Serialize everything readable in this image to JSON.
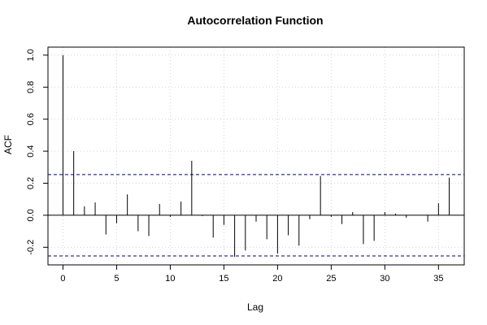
{
  "chart_data": {
    "type": "bar",
    "title": "Autocorrelation Function",
    "xlabel": "Lag",
    "ylabel": "ACF",
    "xlim": [
      -1.4,
      37.4
    ],
    "ylim": [
      -0.31,
      1.05
    ],
    "x_ticks": [
      0,
      5,
      10,
      15,
      20,
      25,
      30,
      35
    ],
    "y_ticks": [
      -0.2,
      0.0,
      0.2,
      0.4,
      0.6,
      0.8,
      1.0
    ],
    "grid": true,
    "confidence_band": 0.254,
    "colors": {
      "bars": "#000000",
      "band": "#00008b",
      "grid": "#d3d3d3",
      "zero_line": "#000000"
    },
    "lags": [
      0,
      1,
      2,
      3,
      4,
      5,
      6,
      7,
      8,
      9,
      10,
      11,
      12,
      13,
      14,
      15,
      16,
      17,
      18,
      19,
      20,
      21,
      22,
      23,
      24,
      25,
      26,
      27,
      28,
      29,
      30,
      31,
      32,
      33,
      34,
      35,
      36
    ],
    "values": [
      1.0,
      0.4,
      0.055,
      0.08,
      -0.12,
      -0.05,
      0.13,
      -0.1,
      -0.13,
      0.07,
      -0.01,
      0.085,
      0.34,
      -0.005,
      -0.14,
      -0.06,
      -0.26,
      -0.22,
      -0.04,
      -0.15,
      -0.24,
      -0.125,
      -0.19,
      -0.025,
      0.245,
      -0.01,
      -0.055,
      0.02,
      -0.18,
      -0.16,
      0.02,
      0.01,
      -0.015,
      0.0,
      -0.04,
      0.075,
      0.235
    ]
  }
}
